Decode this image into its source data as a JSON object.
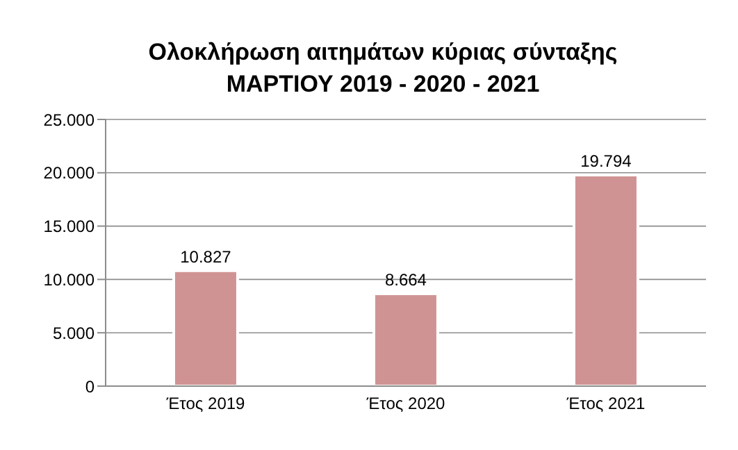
{
  "chart_data": {
    "type": "bar",
    "title": "Ολοκλήρωση αιτημάτων κύριας σύνταξης",
    "subtitle": "ΜΑΡΤΙΟΥ 2019 - 2020 - 2021",
    "categories": [
      "Έτος 2019",
      "Έτος 2020",
      "Έτος 2021"
    ],
    "values": [
      10827,
      8664,
      19794
    ],
    "value_labels": [
      "10.827",
      "8.664",
      "19.794"
    ],
    "color": "#d09393",
    "ylim": [
      0,
      25000
    ],
    "yticks": [
      {
        "value": 0,
        "label": "0"
      },
      {
        "value": 5000,
        "label": "5.000"
      },
      {
        "value": 10000,
        "label": "10.000"
      },
      {
        "value": 15000,
        "label": "15.000"
      },
      {
        "value": 20000,
        "label": "20.000"
      },
      {
        "value": 25000,
        "label": "25.000"
      }
    ],
    "grid": "y",
    "legend": false
  }
}
